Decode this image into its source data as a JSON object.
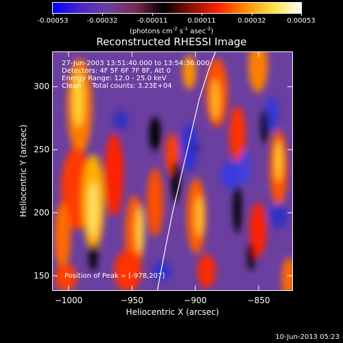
{
  "colorbar": {
    "ticks": [
      "-0.00053",
      "-0.00032",
      "-0.00011",
      "0.00011",
      "0.00032",
      "0.00053"
    ],
    "colors": [
      "#0000ff",
      "#4a28c8",
      "#6a3fa0",
      "#7a2a50",
      "#000000",
      "#8a1000",
      "#ff2000",
      "#ff9000",
      "#ffe040",
      "#ffffff"
    ]
  },
  "units": {
    "base": "(photons cm",
    "cm_exp": "-2",
    "s": " s",
    "s_exp": "-1",
    "asec": " asec",
    "asec_exp": "-2",
    "close": ")"
  },
  "title": "Reconstructed RHESSI Image",
  "info": {
    "time_range": "27-Jun-2003 13:51:40.000 to 13:54:36.000",
    "detectors": "Detectors: 4F 5F 6F 7F 8F, Att 0",
    "energy_range": "Energy Range: 12.0 - 25.0 keV",
    "clean": "Clean     Total counts: 3.23E+04",
    "peak": "Position of Peak = [-978,207]"
  },
  "axes": {
    "xlabel": "Heliocentric X (arcsec)",
    "ylabel": "Heliocentric Y (arcsec)",
    "xlim": [
      -1013,
      -823
    ],
    "ylim": [
      138,
      328
    ],
    "xticks": [
      {
        "value": -1000,
        "label": "−1000"
      },
      {
        "value": -950,
        "label": "−950"
      },
      {
        "value": -900,
        "label": "−900"
      },
      {
        "value": -850,
        "label": "−850"
      }
    ],
    "yticks": [
      {
        "value": 150,
        "label": "150"
      },
      {
        "value": 200,
        "label": "200"
      },
      {
        "value": 250,
        "label": "250"
      },
      {
        "value": 300,
        "label": "300"
      }
    ]
  },
  "limb": [
    [
      -930,
      138
    ],
    [
      -924,
      170
    ],
    [
      -918,
      200
    ],
    [
      -911,
      230
    ],
    [
      -904,
      260
    ],
    [
      -897,
      290
    ],
    [
      -889,
      315
    ],
    [
      -884,
      328
    ]
  ],
  "footer": "10-Jun-2013 05:23"
}
